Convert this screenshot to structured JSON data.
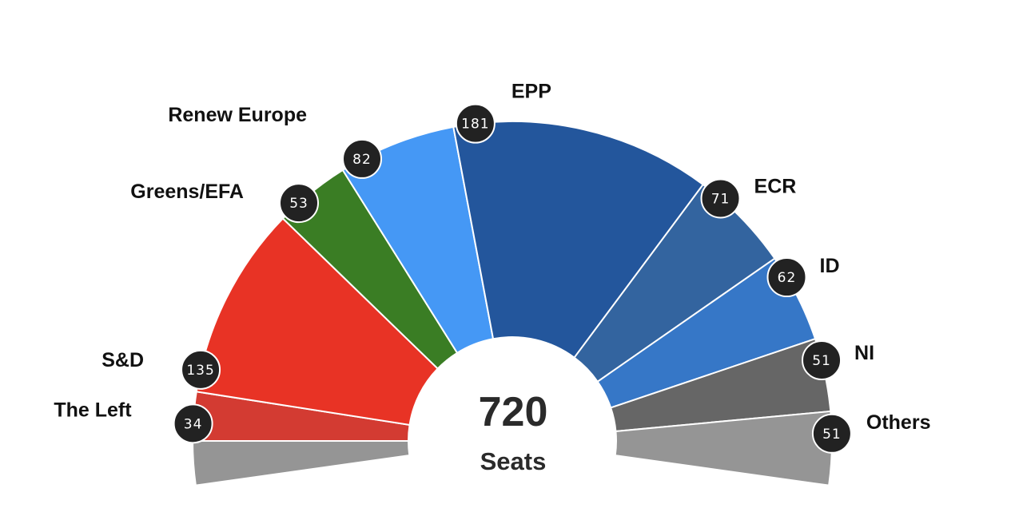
{
  "chart_data": {
    "type": "pie",
    "subtype": "parliament-hemicycle",
    "total": "720",
    "total_label": "Seats",
    "series": [
      {
        "name": "The Left",
        "value": 34,
        "color": "#d33b32"
      },
      {
        "name": "S&D",
        "value": 135,
        "color": "#e83325"
      },
      {
        "name": "Greens/EFA",
        "value": 53,
        "color": "#3a7d24"
      },
      {
        "name": "Renew Europe",
        "value": 82,
        "color": "#4598f5"
      },
      {
        "name": "EPP",
        "value": 181,
        "color": "#23569c"
      },
      {
        "name": "ECR",
        "value": 71,
        "color": "#33649f"
      },
      {
        "name": "ID",
        "value": 62,
        "color": "#3677c7"
      },
      {
        "name": "NI",
        "value": 51,
        "color": "#666666"
      },
      {
        "name": "Others",
        "value": 51,
        "color": "#959595"
      }
    ],
    "unlabeled_left_segment_color": "#959595"
  }
}
